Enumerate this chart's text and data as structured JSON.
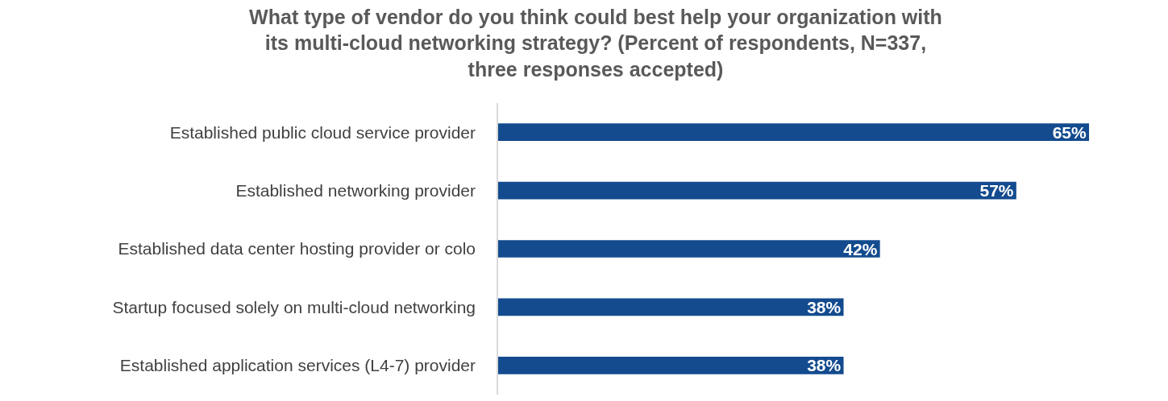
{
  "chart_data": {
    "type": "bar",
    "orientation": "horizontal",
    "title": "What type of vendor do you think could best help your organization with its multi-cloud networking strategy? (Percent of respondents, N=337, three responses accepted)",
    "categories": [
      "Established public cloud service provider",
      "Established networking provider",
      "Established data center hosting provider or colo",
      "Startup focused solely on multi-cloud networking",
      "Established application services (L4-7) provider"
    ],
    "values": [
      65,
      57,
      42,
      38,
      38
    ],
    "value_labels": [
      "65%",
      "57%",
      "42%",
      "38%",
      "38%"
    ],
    "color": "#134b8e",
    "legend": false,
    "tick_labels": "y"
  }
}
